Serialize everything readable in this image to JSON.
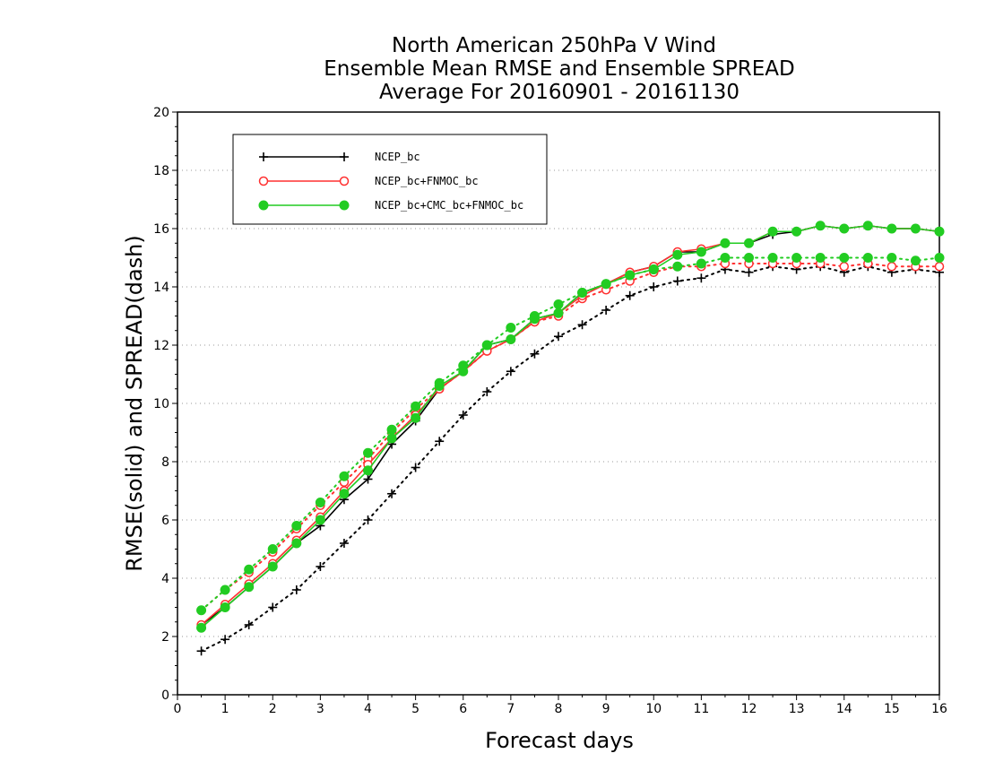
{
  "chart_data": {
    "type": "line",
    "title_lines": [
      "North American 250hPa V Wind",
      "Ensemble Mean RMSE and Ensemble SPREAD",
      "Average For 20160901 - 20161130"
    ],
    "xlabel": "Forecast days",
    "ylabel": "RMSE(solid) and SPREAD(dash)",
    "xlim": [
      0,
      16
    ],
    "ylim": [
      0,
      20
    ],
    "xticks": [
      0,
      1,
      2,
      3,
      4,
      5,
      6,
      7,
      8,
      9,
      10,
      11,
      12,
      13,
      14,
      15,
      16
    ],
    "yticks": [
      0,
      2,
      4,
      6,
      8,
      10,
      12,
      14,
      16,
      18,
      20
    ],
    "grid": "horizontal dotted at y ticks",
    "legend_position": "top-left",
    "x": [
      0.5,
      1,
      1.5,
      2,
      2.5,
      3,
      3.5,
      4,
      4.5,
      5,
      5.5,
      6,
      6.5,
      7,
      7.5,
      8,
      8.5,
      9,
      9.5,
      10,
      10.5,
      11,
      11.5,
      12,
      12.5,
      13,
      13.5,
      14,
      14.5,
      15,
      15.5,
      16
    ],
    "series": [
      {
        "name": "NCEP_bc",
        "color": "#000000",
        "marker": "plus",
        "rmse": [
          2.4,
          3.0,
          3.7,
          4.4,
          5.2,
          5.8,
          6.7,
          7.4,
          8.6,
          9.4,
          10.5,
          11.1,
          12.0,
          12.2,
          12.9,
          13.1,
          13.8,
          14.1,
          14.5,
          14.7,
          15.2,
          15.2,
          15.5,
          15.5,
          15.8,
          15.9,
          16.1,
          16.0,
          16.1,
          16.0,
          16.0,
          15.9
        ],
        "spread": [
          1.5,
          1.9,
          2.4,
          3.0,
          3.6,
          4.4,
          5.2,
          6.0,
          6.9,
          7.8,
          8.7,
          9.6,
          10.4,
          11.1,
          11.7,
          12.3,
          12.7,
          13.2,
          13.7,
          14.0,
          14.2,
          14.3,
          14.6,
          14.5,
          14.7,
          14.6,
          14.7,
          14.5,
          14.7,
          14.5,
          14.6,
          14.5
        ]
      },
      {
        "name": "NCEP_bc+FNMOC_bc",
        "color": "#ff3030",
        "marker": "open-circle",
        "rmse": [
          2.4,
          3.1,
          3.8,
          4.5,
          5.3,
          6.1,
          7.0,
          7.9,
          8.8,
          9.6,
          10.5,
          11.1,
          11.8,
          12.2,
          12.8,
          13.1,
          13.7,
          14.1,
          14.5,
          14.7,
          15.2,
          15.3,
          15.5,
          15.5,
          15.9,
          15.9,
          16.1,
          16.0,
          16.1,
          16.0,
          16.0,
          15.9
        ],
        "spread": [
          2.9,
          3.6,
          4.2,
          4.9,
          5.7,
          6.5,
          7.3,
          8.1,
          9.0,
          9.8,
          10.5,
          11.1,
          11.8,
          12.2,
          12.8,
          13.0,
          13.6,
          13.9,
          14.2,
          14.5,
          14.7,
          14.7,
          14.8,
          14.8,
          14.8,
          14.8,
          14.8,
          14.7,
          14.8,
          14.7,
          14.7,
          14.7
        ]
      },
      {
        "name": "NCEP_bc+CMC_bc+FNMOC_bc",
        "color": "#22cc22",
        "marker": "filled-circle",
        "rmse": [
          2.3,
          3.0,
          3.7,
          4.4,
          5.2,
          6.0,
          6.9,
          7.7,
          8.8,
          9.5,
          10.6,
          11.1,
          12.0,
          12.2,
          12.9,
          13.1,
          13.8,
          14.1,
          14.4,
          14.6,
          15.1,
          15.2,
          15.5,
          15.5,
          15.9,
          15.9,
          16.1,
          16.0,
          16.1,
          16.0,
          16.0,
          15.9
        ],
        "spread": [
          2.9,
          3.6,
          4.3,
          5.0,
          5.8,
          6.6,
          7.5,
          8.3,
          9.1,
          9.9,
          10.7,
          11.3,
          12.0,
          12.6,
          13.0,
          13.4,
          13.8,
          14.1,
          14.4,
          14.6,
          14.7,
          14.8,
          15.0,
          15.0,
          15.0,
          15.0,
          15.0,
          15.0,
          15.0,
          15.0,
          14.9,
          15.0
        ]
      }
    ]
  }
}
